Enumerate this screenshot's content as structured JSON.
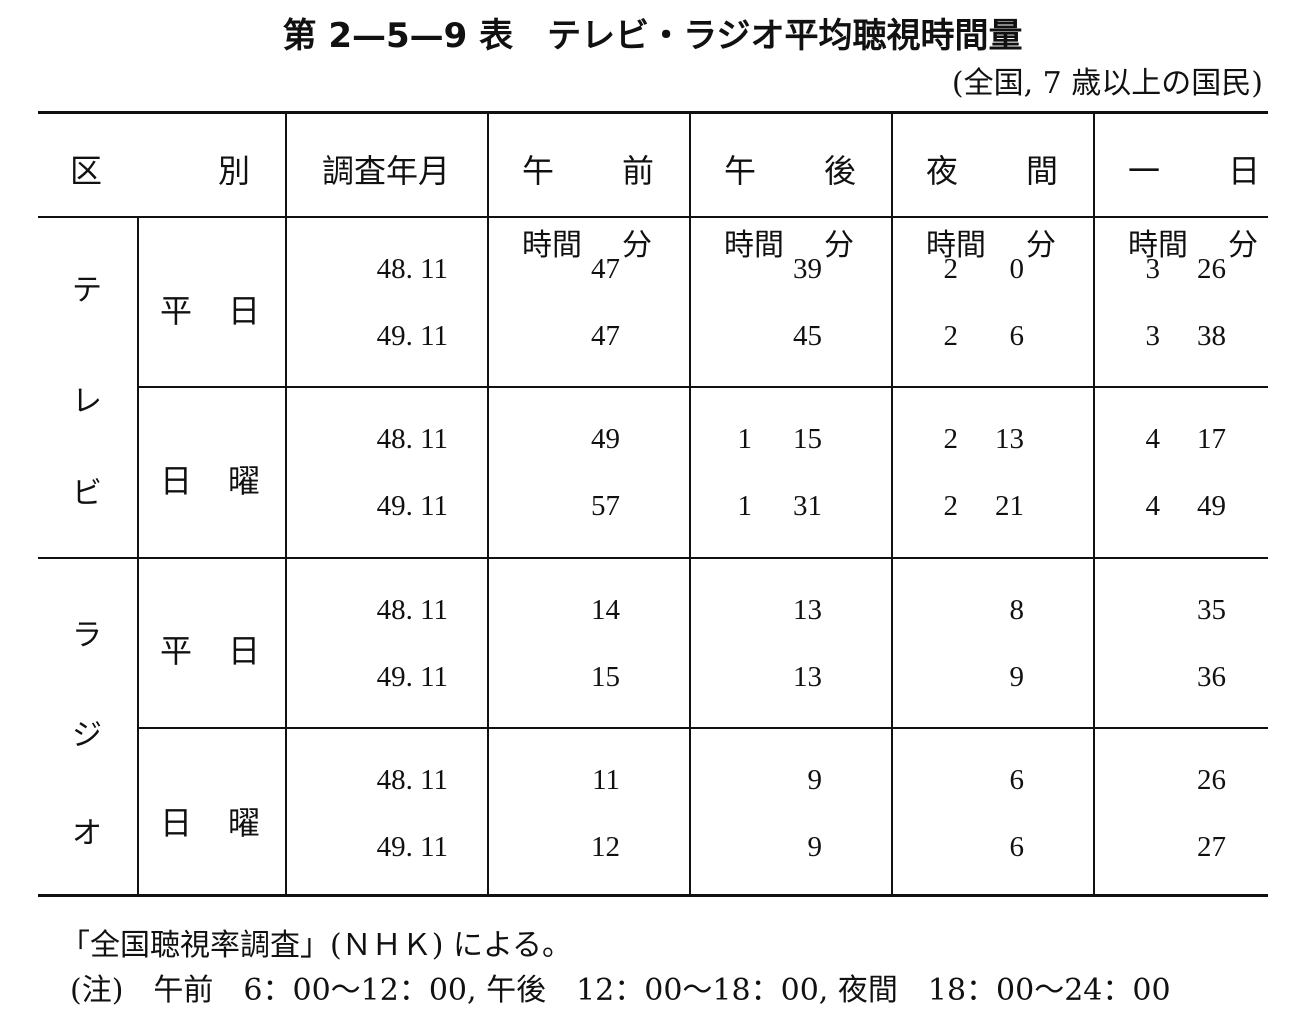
{
  "title": "第 2—5—9 表　テレビ・ラジオ平均聴視時間量",
  "subtitle": "(全国, 7 歳以上の国民)",
  "headers": {
    "category_a": "区",
    "category_b": "別",
    "survey": "調査年月",
    "morning_a": "午",
    "morning_b": "前",
    "afternoon_a": "午",
    "afternoon_b": "後",
    "night_a": "夜",
    "night_b": "間",
    "day_a": "一",
    "day_b": "日"
  },
  "units": {
    "hour": "時間",
    "minute": "分"
  },
  "groups": [
    {
      "medium": [
        "テ",
        "レ",
        "ビ"
      ],
      "subgroups": [
        {
          "day_type": [
            "平",
            "日"
          ],
          "rows": [
            {
              "survey": "48. 11",
              "morning": {
                "h": "",
                "m": "47"
              },
              "afternoon": {
                "h": "",
                "m": "39"
              },
              "night": {
                "h": "2",
                "m": "0"
              },
              "day": {
                "h": "3",
                "m": "26"
              }
            },
            {
              "survey": "49. 11",
              "morning": {
                "h": "",
                "m": "47"
              },
              "afternoon": {
                "h": "",
                "m": "45"
              },
              "night": {
                "h": "2",
                "m": "6"
              },
              "day": {
                "h": "3",
                "m": "38"
              }
            }
          ]
        },
        {
          "day_type": [
            "日",
            "曜"
          ],
          "rows": [
            {
              "survey": "48. 11",
              "morning": {
                "h": "",
                "m": "49"
              },
              "afternoon": {
                "h": "1",
                "m": "15"
              },
              "night": {
                "h": "2",
                "m": "13"
              },
              "day": {
                "h": "4",
                "m": "17"
              }
            },
            {
              "survey": "49. 11",
              "morning": {
                "h": "",
                "m": "57"
              },
              "afternoon": {
                "h": "1",
                "m": "31"
              },
              "night": {
                "h": "2",
                "m": "21"
              },
              "day": {
                "h": "4",
                "m": "49"
              }
            }
          ]
        }
      ]
    },
    {
      "medium": [
        "ラ",
        "ジ",
        "オ"
      ],
      "subgroups": [
        {
          "day_type": [
            "平",
            "日"
          ],
          "rows": [
            {
              "survey": "48. 11",
              "morning": {
                "h": "",
                "m": "14"
              },
              "afternoon": {
                "h": "",
                "m": "13"
              },
              "night": {
                "h": "",
                "m": "8"
              },
              "day": {
                "h": "",
                "m": "35"
              }
            },
            {
              "survey": "49. 11",
              "morning": {
                "h": "",
                "m": "15"
              },
              "afternoon": {
                "h": "",
                "m": "13"
              },
              "night": {
                "h": "",
                "m": "9"
              },
              "day": {
                "h": "",
                "m": "36"
              }
            }
          ]
        },
        {
          "day_type": [
            "日",
            "曜"
          ],
          "rows": [
            {
              "survey": "48. 11",
              "morning": {
                "h": "",
                "m": "11"
              },
              "afternoon": {
                "h": "",
                "m": "9"
              },
              "night": {
                "h": "",
                "m": "6"
              },
              "day": {
                "h": "",
                "m": "26"
              }
            },
            {
              "survey": "49. 11",
              "morning": {
                "h": "",
                "m": "12"
              },
              "afternoon": {
                "h": "",
                "m": "9"
              },
              "night": {
                "h": "",
                "m": "6"
              },
              "day": {
                "h": "",
                "m": "27"
              }
            }
          ]
        }
      ]
    }
  ],
  "source": "「全国聴視率調査」(ＮＨＫ) による。",
  "note": "(注)　午前　6：00～12：00, 午後　12：00～18：00, 夜間　18：00～24：00"
}
